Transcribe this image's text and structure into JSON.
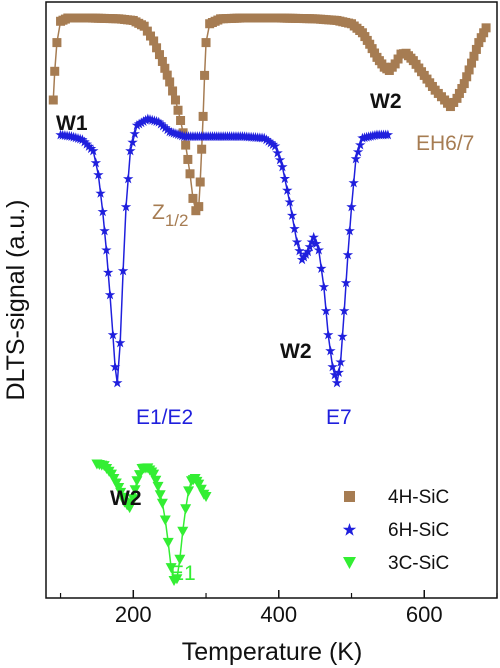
{
  "chart_data": {
    "type": "line",
    "xlabel": "Temperature (K)",
    "ylabel": "DLTS-signal (a.u.)",
    "xlim": [
      80,
      700
    ],
    "xticks": [
      200,
      400,
      600
    ],
    "y_ticks_shown": false,
    "legend_position": "bottom-right",
    "series": [
      {
        "name": "4H-SiC",
        "color": "#a67c52",
        "marker": "square",
        "points": [
          [
            90,
            0.0
          ],
          [
            92,
            0.35
          ],
          [
            95,
            0.7
          ],
          [
            100,
            0.96
          ],
          [
            110,
            1.0
          ],
          [
            140,
            1.0
          ],
          [
            180,
            0.99
          ],
          [
            200,
            0.97
          ],
          [
            215,
            0.9
          ],
          [
            228,
            0.72
          ],
          [
            240,
            0.47
          ],
          [
            250,
            0.22
          ],
          [
            258,
            0.0
          ],
          [
            265,
            -0.25
          ],
          [
            272,
            -0.55
          ],
          [
            278,
            -0.9
          ],
          [
            282,
            -1.2
          ],
          [
            286,
            -1.35
          ],
          [
            290,
            -1.3
          ],
          [
            292,
            -1.0
          ],
          [
            294,
            -0.6
          ],
          [
            296,
            -0.2
          ],
          [
            298,
            0.3
          ],
          [
            300,
            0.7
          ],
          [
            305,
            0.93
          ],
          [
            320,
            0.99
          ],
          [
            350,
            1.0
          ],
          [
            400,
            1.0
          ],
          [
            450,
            0.99
          ],
          [
            480,
            0.97
          ],
          [
            500,
            0.93
          ],
          [
            515,
            0.82
          ],
          [
            525,
            0.68
          ],
          [
            535,
            0.52
          ],
          [
            545,
            0.4
          ],
          [
            552,
            0.36
          ],
          [
            560,
            0.44
          ],
          [
            568,
            0.56
          ],
          [
            575,
            0.57
          ],
          [
            585,
            0.48
          ],
          [
            600,
            0.3
          ],
          [
            615,
            0.12
          ],
          [
            628,
            0.0
          ],
          [
            636,
            -0.08
          ],
          [
            645,
            0.02
          ],
          [
            655,
            0.2
          ],
          [
            665,
            0.45
          ],
          [
            675,
            0.7
          ],
          [
            685,
            0.88
          ]
        ]
      },
      {
        "name": "6H-SiC",
        "color": "#1f1fdd",
        "marker": "star",
        "points": [
          [
            100,
            1.0
          ],
          [
            115,
            0.99
          ],
          [
            130,
            0.97
          ],
          [
            145,
            0.9
          ],
          [
            152,
            0.75
          ],
          [
            158,
            0.52
          ],
          [
            163,
            0.28
          ],
          [
            168,
            0.0
          ],
          [
            172,
            -0.25
          ],
          [
            175,
            -0.45
          ],
          [
            178,
            -0.55
          ],
          [
            182,
            -0.3
          ],
          [
            186,
            0.15
          ],
          [
            190,
            0.55
          ],
          [
            196,
            0.9
          ],
          [
            205,
            1.06
          ],
          [
            220,
            1.1
          ],
          [
            235,
            1.08
          ],
          [
            250,
            1.02
          ],
          [
            270,
            0.99
          ],
          [
            300,
            0.99
          ],
          [
            350,
            0.99
          ],
          [
            380,
            0.98
          ],
          [
            395,
            0.93
          ],
          [
            405,
            0.8
          ],
          [
            415,
            0.58
          ],
          [
            425,
            0.33
          ],
          [
            432,
            0.22
          ],
          [
            440,
            0.27
          ],
          [
            448,
            0.36
          ],
          [
            455,
            0.28
          ],
          [
            462,
            0.05
          ],
          [
            468,
            -0.25
          ],
          [
            474,
            -0.45
          ],
          [
            480,
            -0.55
          ],
          [
            485,
            -0.42
          ],
          [
            490,
            -0.1
          ],
          [
            495,
            0.25
          ],
          [
            500,
            0.55
          ],
          [
            506,
            0.85
          ],
          [
            515,
            0.98
          ],
          [
            535,
            1.0
          ],
          [
            550,
            1.0
          ]
        ]
      },
      {
        "name": "3C-SiC",
        "color": "#33ee33",
        "marker": "triangle-down",
        "points": [
          [
            150,
            1.0
          ],
          [
            160,
            0.97
          ],
          [
            170,
            0.82
          ],
          [
            180,
            0.58
          ],
          [
            188,
            0.32
          ],
          [
            195,
            0.22
          ],
          [
            200,
            0.38
          ],
          [
            205,
            0.7
          ],
          [
            212,
            0.92
          ],
          [
            220,
            0.93
          ],
          [
            228,
            0.82
          ],
          [
            234,
            0.6
          ],
          [
            240,
            0.3
          ],
          [
            244,
            0.0
          ],
          [
            248,
            -0.4
          ],
          [
            252,
            -0.85
          ],
          [
            256,
            -1.08
          ],
          [
            260,
            -1.05
          ],
          [
            264,
            -0.7
          ],
          [
            268,
            -0.2
          ],
          [
            272,
            0.2
          ],
          [
            276,
            0.52
          ],
          [
            280,
            0.7
          ],
          [
            285,
            0.74
          ],
          [
            290,
            0.64
          ],
          [
            297,
            0.46
          ],
          [
            300,
            0.42
          ]
        ]
      }
    ],
    "annotations": {
      "w1_4h": "W1",
      "z12_main": "Z",
      "z12_sub": "1/2",
      "w2_4h": "W2",
      "eh67": "EH6/7",
      "w2_6h": "W2",
      "e1e2": "E1/E2",
      "e7": "E7",
      "w2_3c": "W2",
      "e1": "E1"
    }
  }
}
